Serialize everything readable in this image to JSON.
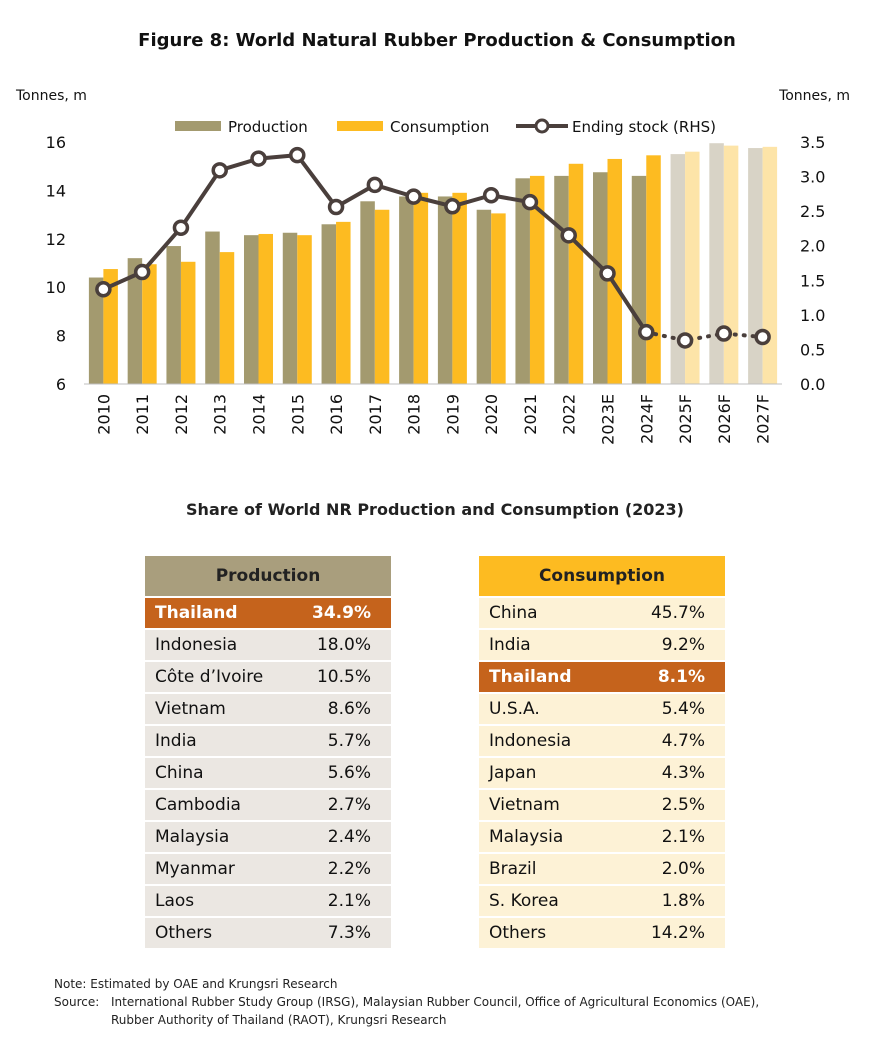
{
  "figure_title": "Figure 8: World Natural Rubber Production & Consumption",
  "chart_data": {
    "type": "bar",
    "title": "Figure 8: World Natural Rubber Production & Consumption",
    "categories": [
      "2010",
      "2011",
      "2012",
      "2013",
      "2014",
      "2015",
      "2016",
      "2017",
      "2018",
      "2019",
      "2020",
      "2021",
      "2022",
      "2023E",
      "2024F",
      "2025F",
      "2026F",
      "2027F"
    ],
    "forecast_start_index": 15,
    "left_axis_label": "Tonnes, m",
    "right_axis_label": "Tonnes, m",
    "ylim": [
      6,
      16
    ],
    "yticks": [
      "6",
      "8",
      "10",
      "12",
      "14",
      "16"
    ],
    "y2lim": [
      0,
      3.5
    ],
    "y2ticks": [
      "0.0",
      "0.5",
      "1.0",
      "1.5",
      "2.0",
      "2.5",
      "3.0",
      "3.5"
    ],
    "series": [
      {
        "name": "Production",
        "kind": "bar",
        "color": "#a39a6f",
        "forecast_color": "#d8d3c6",
        "values": [
          10.4,
          11.2,
          11.7,
          12.3,
          12.15,
          12.25,
          12.6,
          13.55,
          13.75,
          13.75,
          13.2,
          14.5,
          14.6,
          14.75,
          14.6,
          15.5,
          15.95,
          15.75
        ]
      },
      {
        "name": "Consumption",
        "kind": "bar",
        "color": "#fdbb21",
        "forecast_color": "#fde4a8",
        "values": [
          10.75,
          10.95,
          11.05,
          11.45,
          12.2,
          12.15,
          12.7,
          13.2,
          13.9,
          13.9,
          13.05,
          14.6,
          15.1,
          15.3,
          15.45,
          15.6,
          15.85,
          15.8
        ]
      },
      {
        "name": "Ending stock (RHS)",
        "kind": "line",
        "axis": "right",
        "color": "#4a3f3c",
        "values": [
          1.37,
          1.62,
          2.26,
          3.09,
          3.26,
          3.31,
          2.56,
          2.88,
          2.71,
          2.57,
          2.73,
          2.63,
          2.15,
          1.6,
          0.75,
          0.63,
          0.73,
          0.68
        ]
      }
    ],
    "legend_position": "top-center",
    "grid": false
  },
  "share_title": "Share of World NR Production and Consumption (2023)",
  "production_table": {
    "header": "Production",
    "rows": [
      {
        "country": "Thailand",
        "share": "34.9%",
        "highlight": true
      },
      {
        "country": "Indonesia",
        "share": "18.0%"
      },
      {
        "country": "Côte d’Ivoire",
        "share": "10.5%"
      },
      {
        "country": "Vietnam",
        "share": "8.6%"
      },
      {
        "country": "India",
        "share": "5.7%"
      },
      {
        "country": "China",
        "share": "5.6%"
      },
      {
        "country": "Cambodia",
        "share": "2.7%"
      },
      {
        "country": "Malaysia",
        "share": "2.4%"
      },
      {
        "country": "Myanmar",
        "share": "2.2%"
      },
      {
        "country": "Laos",
        "share": "2.1%"
      },
      {
        "country": "Others",
        "share": "7.3%"
      }
    ]
  },
  "consumption_table": {
    "header": "Consumption",
    "rows": [
      {
        "country": "China",
        "share": "45.7%"
      },
      {
        "country": "India",
        "share": "9.2%"
      },
      {
        "country": "Thailand",
        "share": "8.1%",
        "highlight": true
      },
      {
        "country": "U.S.A.",
        "share": "5.4%"
      },
      {
        "country": "Indonesia",
        "share": "4.7%"
      },
      {
        "country": "Japan",
        "share": "4.3%"
      },
      {
        "country": "Vietnam",
        "share": "2.5%"
      },
      {
        "country": "Malaysia",
        "share": "2.1%"
      },
      {
        "country": "Brazil",
        "share": "2.0%"
      },
      {
        "country": "S. Korea",
        "share": "1.8%"
      },
      {
        "country": "Others",
        "share": "14.2%"
      }
    ]
  },
  "notes": {
    "note": "Note: Estimated by OAE and Krungsri Research",
    "source_label": "Source:",
    "source_line1": "International Rubber Study Group (IRSG), Malaysian Rubber Council, Office of Agricultural Economics (OAE),",
    "source_line2": "Rubber Authority of Thailand (RAOT), Krungsri Research"
  }
}
